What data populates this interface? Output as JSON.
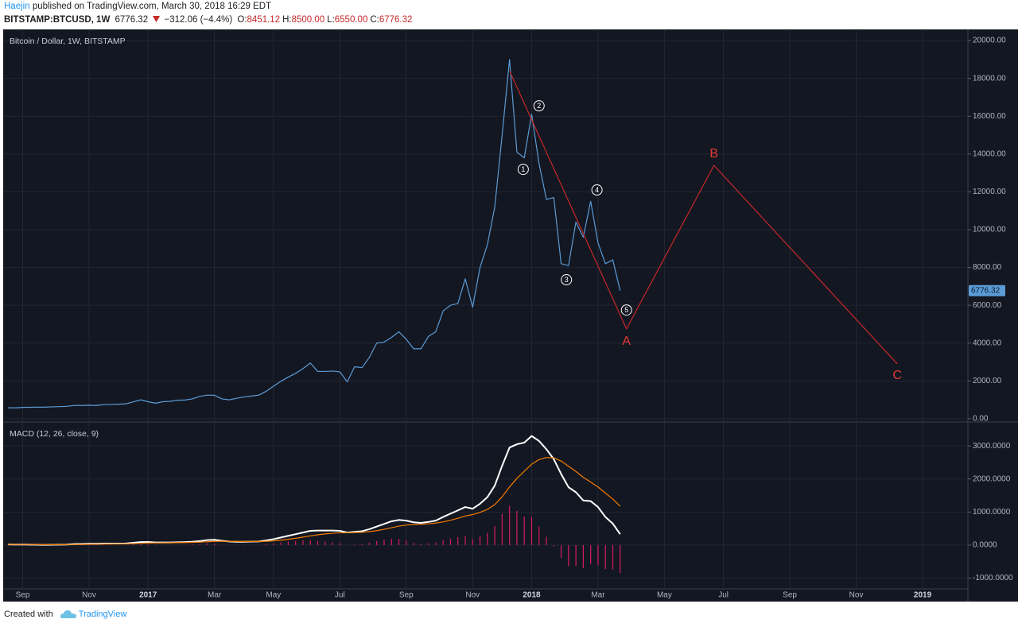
{
  "header": {
    "author": "Haejin",
    "published": "published on TradingView.com, March 30, 2018 16:29 EDT",
    "symbol": "BITSTAMP:BTCUSD, 1W",
    "last": "6776.32",
    "change": "−312.06 (−4.4%)",
    "ohlc": [
      {
        "label": "O:",
        "value": "8451.12"
      },
      {
        "label": "H:",
        "value": "8500.00"
      },
      {
        "label": "L:",
        "value": "6550.00"
      },
      {
        "label": "C:",
        "value": "6776.32"
      }
    ]
  },
  "footer": {
    "text": "Created with",
    "brand": "TradingView"
  },
  "chart_data": [
    {
      "type": "line",
      "title": "Bitcoin / Dollar, 1W, BITSTAMP",
      "x": [
        "2016-08-22",
        "2016-08-29",
        "2016-09-05",
        "2016-09-12",
        "2016-09-19",
        "2016-09-26",
        "2016-10-03",
        "2016-10-10",
        "2016-10-17",
        "2016-10-24",
        "2016-10-31",
        "2016-11-07",
        "2016-11-14",
        "2016-11-21",
        "2016-11-28",
        "2016-12-05",
        "2016-12-12",
        "2016-12-19",
        "2016-12-26",
        "2017-01-02",
        "2017-01-09",
        "2017-01-16",
        "2017-01-23",
        "2017-01-30",
        "2017-02-06",
        "2017-02-13",
        "2017-02-20",
        "2017-02-27",
        "2017-03-06",
        "2017-03-13",
        "2017-03-20",
        "2017-03-27",
        "2017-04-03",
        "2017-04-10",
        "2017-04-17",
        "2017-04-24",
        "2017-05-01",
        "2017-05-08",
        "2017-05-15",
        "2017-05-22",
        "2017-05-29",
        "2017-06-05",
        "2017-06-12",
        "2017-06-19",
        "2017-06-26",
        "2017-07-03",
        "2017-07-10",
        "2017-07-17",
        "2017-07-24",
        "2017-07-31",
        "2017-08-07",
        "2017-08-14",
        "2017-08-21",
        "2017-08-28",
        "2017-09-04",
        "2017-09-11",
        "2017-09-18",
        "2017-09-25",
        "2017-10-02",
        "2017-10-09",
        "2017-10-16",
        "2017-10-23",
        "2017-10-30",
        "2017-11-06",
        "2017-11-13",
        "2017-11-20",
        "2017-11-27",
        "2017-12-04",
        "2017-12-11",
        "2017-12-18",
        "2017-12-25",
        "2018-01-01",
        "2018-01-08",
        "2018-01-15",
        "2018-01-22",
        "2018-01-29",
        "2018-02-05",
        "2018-02-12",
        "2018-02-19",
        "2018-02-26",
        "2018-03-05",
        "2018-03-12",
        "2018-03-19",
        "2018-03-26"
      ],
      "xlim": [
        "2016-08-19",
        "2019-02-19"
      ],
      "ylim": [
        -130,
        20550
      ],
      "yticks": [
        {
          "value": 0,
          "label": "0.00"
        },
        {
          "value": 2000,
          "label": "2000.00"
        },
        {
          "value": 4000,
          "label": "4000.00"
        },
        {
          "value": 6000,
          "label": "6000.00"
        },
        {
          "value": 8000,
          "label": "8000.00"
        },
        {
          "value": 10000,
          "label": "10000.00"
        },
        {
          "value": 12000,
          "label": "12000.00"
        },
        {
          "value": 14000,
          "label": "14000.00"
        },
        {
          "value": 16000,
          "label": "16000.00"
        },
        {
          "value": 18000,
          "label": "18000.00"
        },
        {
          "value": 20000,
          "label": "20000.00"
        }
      ],
      "grid": true,
      "series": [
        {
          "color": "#5b9bd5",
          "values": [
            580,
            575,
            600,
            605,
            610,
            610,
            630,
            640,
            655,
            700,
            700,
            715,
            700,
            745,
            755,
            770,
            790,
            890,
            1000,
            900,
            820,
            900,
            920,
            980,
            990,
            1050,
            1180,
            1250,
            1240,
            1050,
            1000,
            1080,
            1150,
            1200,
            1250,
            1450,
            1720,
            1980,
            2200,
            2400,
            2650,
            2950,
            2500,
            2500,
            2520,
            2480,
            1950,
            2750,
            2700,
            3250,
            4000,
            4050,
            4300,
            4600,
            4200,
            3700,
            3700,
            4350,
            4600,
            5700,
            6000,
            6100,
            7400,
            5900,
            8000,
            9200,
            11200,
            15000,
            19000,
            14100,
            13800,
            16100,
            13500,
            11600,
            11700,
            8200,
            8100,
            10400,
            9600,
            11500,
            9300,
            8200,
            8400,
            6776.32
          ]
        },
        {
          "color": "#c62828",
          "x": [
            "2017-12-11",
            "2018-04-01",
            "2018-06-23",
            "2018-12-14"
          ],
          "values": [
            18400,
            4750,
            13400,
            2900
          ]
        }
      ],
      "annotations": [
        {
          "text": "1",
          "x": "2017-12-24",
          "y": 13190,
          "shape": "circle"
        },
        {
          "text": "2",
          "x": "2018-01-08",
          "y": 16550,
          "shape": "circle"
        },
        {
          "text": "3",
          "x": "2018-02-03",
          "y": 7350,
          "shape": "circle"
        },
        {
          "text": "4",
          "x": "2018-03-04",
          "y": 12100,
          "shape": "circle"
        },
        {
          "text": "5",
          "x": "2018-04-01",
          "y": 5750,
          "shape": "circle"
        },
        {
          "text": "A",
          "x": "2018-04-01",
          "y": 4075,
          "color": "#e53935"
        },
        {
          "text": "B",
          "x": "2018-06-23",
          "y": 14000,
          "color": "#e53935"
        },
        {
          "text": "C",
          "x": "2018-12-14",
          "y": 2270,
          "color": "#e53935"
        }
      ]
    },
    {
      "type": "line",
      "title": "MACD (12, 26, close, 9)",
      "x": [
        "2016-08-22",
        "2016-08-29",
        "2016-09-05",
        "2016-09-12",
        "2016-09-19",
        "2016-09-26",
        "2016-10-03",
        "2016-10-10",
        "2016-10-17",
        "2016-10-24",
        "2016-10-31",
        "2016-11-07",
        "2016-11-14",
        "2016-11-21",
        "2016-11-28",
        "2016-12-05",
        "2016-12-12",
        "2016-12-19",
        "2016-12-26",
        "2017-01-02",
        "2017-01-09",
        "2017-01-16",
        "2017-01-23",
        "2017-01-30",
        "2017-02-06",
        "2017-02-13",
        "2017-02-20",
        "2017-02-27",
        "2017-03-06",
        "2017-03-13",
        "2017-03-20",
        "2017-03-27",
        "2017-04-03",
        "2017-04-10",
        "2017-04-17",
        "2017-04-24",
        "2017-05-01",
        "2017-05-08",
        "2017-05-15",
        "2017-05-22",
        "2017-05-29",
        "2017-06-05",
        "2017-06-12",
        "2017-06-19",
        "2017-06-26",
        "2017-07-03",
        "2017-07-10",
        "2017-07-17",
        "2017-07-24",
        "2017-07-31",
        "2017-08-07",
        "2017-08-14",
        "2017-08-21",
        "2017-08-28",
        "2017-09-04",
        "2017-09-11",
        "2017-09-18",
        "2017-09-25",
        "2017-10-02",
        "2017-10-09",
        "2017-10-16",
        "2017-10-23",
        "2017-10-30",
        "2017-11-06",
        "2017-11-13",
        "2017-11-20",
        "2017-11-27",
        "2017-12-04",
        "2017-12-11",
        "2017-12-18",
        "2017-12-25",
        "2018-01-01",
        "2018-01-08",
        "2018-01-15",
        "2018-01-22",
        "2018-01-29",
        "2018-02-05",
        "2018-02-12",
        "2018-02-19",
        "2018-02-26",
        "2018-03-05",
        "2018-03-12",
        "2018-03-19",
        "2018-03-26"
      ],
      "xlim": [
        "2016-08-19",
        "2019-02-19"
      ],
      "xticks": [
        {
          "value": "2016-09-05",
          "label": "Sep"
        },
        {
          "value": "2016-11-07",
          "label": "Nov"
        },
        {
          "value": "2017-01-02",
          "label": "2017"
        },
        {
          "value": "2017-03-06",
          "label": "Mar"
        },
        {
          "value": "2017-05-01",
          "label": "May"
        },
        {
          "value": "2017-07-03",
          "label": "Jul"
        },
        {
          "value": "2017-09-04",
          "label": "Sep"
        },
        {
          "value": "2017-11-06",
          "label": "Nov"
        },
        {
          "value": "2018-01-01",
          "label": "2018"
        },
        {
          "value": "2018-03-05",
          "label": "Mar"
        },
        {
          "value": "2018-05-07",
          "label": "May"
        },
        {
          "value": "2018-07-02",
          "label": "Jul"
        },
        {
          "value": "2018-09-03",
          "label": "Sep"
        },
        {
          "value": "2018-11-05",
          "label": "Nov"
        },
        {
          "value": "2019-01-07",
          "label": "2019"
        }
      ],
      "ylim": [
        -1300,
        3700
      ],
      "yticks": [
        {
          "value": -1000,
          "label": "-1000.0000"
        },
        {
          "value": 0,
          "label": "0.0000"
        },
        {
          "value": 1000,
          "label": "1000.0000"
        },
        {
          "value": 2000,
          "label": "2000.0000"
        },
        {
          "value": 3000,
          "label": "3000.0000"
        }
      ],
      "grid": true,
      "series": [
        {
          "type": "bar",
          "color": "#d81b60",
          "values": [
            0,
            -4,
            -3,
            -5,
            -6,
            -6,
            -3,
            -1,
            2,
            13,
            15,
            16,
            13,
            14,
            11,
            9,
            11,
            25,
            36,
            33,
            14,
            11,
            9,
            11,
            13,
            18,
            31,
            49,
            47,
            14,
            -5,
            -12,
            -10,
            -4,
            1,
            25,
            52,
            82,
            105,
            124,
            139,
            152,
            129,
            103,
            83,
            58,
            7,
            21,
            33,
            74,
            124,
            163,
            194,
            187,
            134,
            67,
            38,
            54,
            75,
            148,
            199,
            239,
            271,
            177,
            262,
            369,
            575,
            940,
            1192,
            1034,
            867,
            854,
            563,
            250,
            -40,
            -392,
            -634,
            -627,
            -701,
            -577,
            -606,
            -725,
            -740,
            -848
          ]
        },
        {
          "color": "#ffffff",
          "values": [
            20,
            15,
            15,
            12,
            10,
            8,
            10,
            12,
            15,
            30,
            35,
            40,
            40,
            45,
            45,
            45,
            50,
            70,
            90,
            95,
            80,
            80,
            80,
            85,
            90,
            100,
            120,
            150,
            160,
            130,
            110,
            100,
            100,
            105,
            110,
            140,
            180,
            230,
            280,
            330,
            380,
            430,
            440,
            440,
            440,
            430,
            380,
            400,
            420,
            480,
            560,
            640,
            720,
            760,
            740,
            690,
            670,
            700,
            740,
            850,
            950,
            1050,
            1150,
            1100,
            1250,
            1450,
            1800,
            2400,
            2950,
            3050,
            3100,
            3300,
            3150,
            2900,
            2600,
            2150,
            1750,
            1600,
            1350,
            1330,
            1150,
            850,
            650,
            330
          ]
        },
        {
          "color": "#f57c00",
          "values": [
            20,
            19,
            18,
            17,
            16,
            14,
            13,
            13,
            13,
            17,
            20,
            24,
            27,
            31,
            34,
            36,
            39,
            45,
            54,
            62,
            66,
            69,
            71,
            74,
            77,
            82,
            89,
            101,
            113,
            117,
            115,
            112,
            110,
            109,
            109,
            115,
            128,
            149,
            175,
            206,
            241,
            279,
            311,
            337,
            357,
            372,
            374,
            379,
            387,
            406,
            437,
            477,
            526,
            573,
            606,
            623,
            632,
            646,
            665,
            702,
            751,
            811,
            879,
            923,
            989,
            1081,
            1225,
            1460,
            1758,
            2016,
            2233,
            2446,
            2587,
            2650,
            2640,
            2542,
            2384,
            2227,
            2051,
            1907,
            1756,
            1575,
            1390,
            1178
          ]
        }
      ]
    }
  ]
}
